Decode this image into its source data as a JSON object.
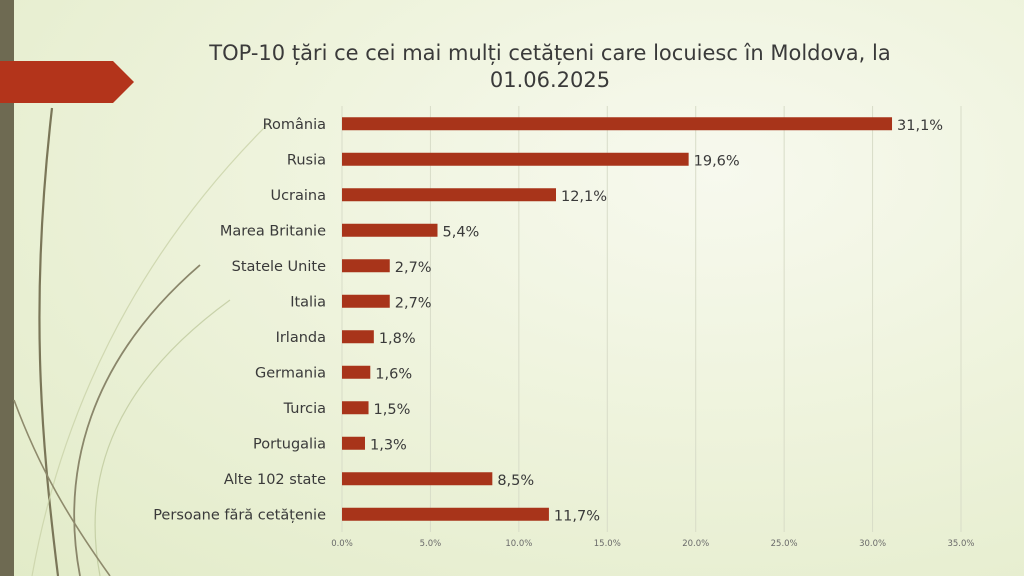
{
  "title_line1": "TOP-10 țări  ce cei mai mulți cetățeni care locuiesc în Moldova, la",
  "title_line2": "01.06.2025",
  "colors": {
    "bar": "#a8341a",
    "accent_tab": "#b3341b",
    "left_bar": "#6e6a52",
    "grid": "#d8dcc8"
  },
  "chart_data": {
    "type": "bar",
    "orientation": "horizontal",
    "title": "TOP-10 țări  ce cei mai mulți cetățeni care locuiesc în Moldova, la 01.06.2025",
    "categories": [
      "România",
      "Rusia",
      "Ucraina",
      "Marea Britanie",
      "Statele Unite",
      "Italia",
      "Irlanda",
      "Germania",
      "Turcia",
      "Portugalia",
      "Alte 102  state",
      "Persoane fără cetățenie"
    ],
    "values": [
      31.1,
      19.6,
      12.1,
      5.4,
      2.7,
      2.7,
      1.8,
      1.6,
      1.5,
      1.3,
      8.5,
      11.7
    ],
    "value_labels": [
      "31,1%",
      "19,6%",
      "12,1%",
      "5,4%",
      "2,7%",
      "2,7%",
      "1,8%",
      "1,6%",
      "1,5%",
      "1,3%",
      "8,5%",
      "11,7%"
    ],
    "x_ticks": [
      0,
      5,
      10,
      15,
      20,
      25,
      30,
      35
    ],
    "x_tick_labels": [
      "0.0%",
      "5.0%",
      "10.0%",
      "15.0%",
      "20.0%",
      "25.0%",
      "30.0%",
      "35.0%"
    ],
    "xlim": [
      0,
      35
    ],
    "xlabel": "",
    "ylabel": "",
    "grid": true,
    "legend": false
  }
}
